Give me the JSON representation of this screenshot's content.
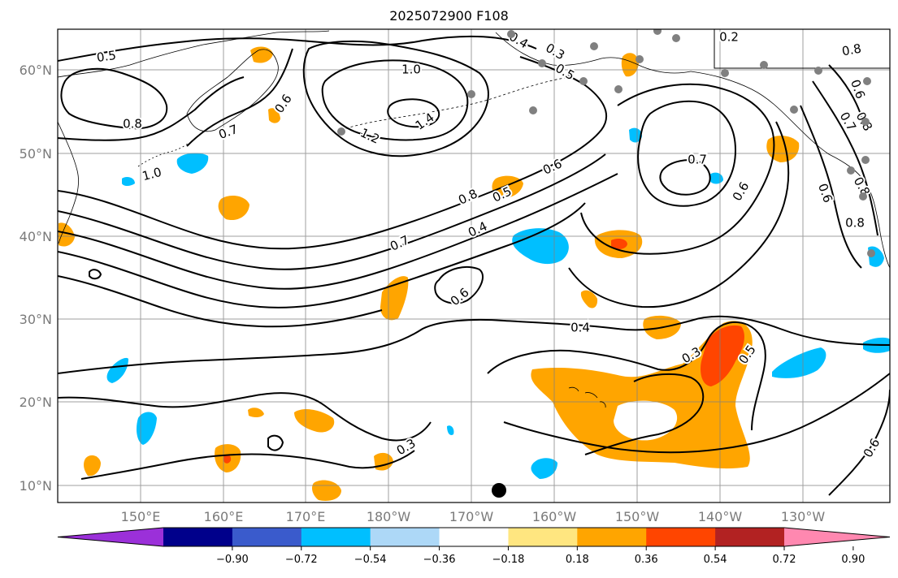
{
  "title": "2025072900 F108",
  "lon_labels": [
    "150°E",
    "160°E",
    "170°E",
    "180°W",
    "170°W",
    "160°W",
    "150°W",
    "140°W",
    "130°W"
  ],
  "lat_labels": [
    "60°N",
    "50°N",
    "40°N",
    "30°N",
    "20°N",
    "10°N"
  ],
  "contour_labels": [
    "0.5",
    "0.8",
    "0.7",
    "0.6",
    "1.0",
    "1.0",
    "1.2",
    "1.4",
    "0.4",
    "0.3",
    "0.5",
    "0.6",
    "0.7",
    "0.8",
    "0.5",
    "0.4",
    "0.7",
    "0.6",
    "0.8",
    "0.7",
    "0.6",
    "0.8",
    "0.8",
    "0.6",
    "0.8",
    "0.6",
    "0.4",
    "0.3",
    "0.3",
    "0.5",
    "0.6",
    "0.2"
  ],
  "colorbar": {
    "colors": [
      "#9b30d9",
      "#00008b",
      "#3a5bcc",
      "#00bfff",
      "#add8f7",
      "#ffffff",
      "#ffe680",
      "#ffa500",
      "#ff4500",
      "#b22222",
      "#ff88b0"
    ],
    "tick_labels": [
      "−0.90",
      "−0.72",
      "−0.54",
      "−0.36",
      "−0.18",
      "0.18",
      "0.36",
      "0.54",
      "0.72",
      "0.90"
    ]
  },
  "colors": {
    "positive_mid": "#ffa500",
    "positive_high": "#ff4500",
    "negative_mid": "#00bfff"
  }
}
